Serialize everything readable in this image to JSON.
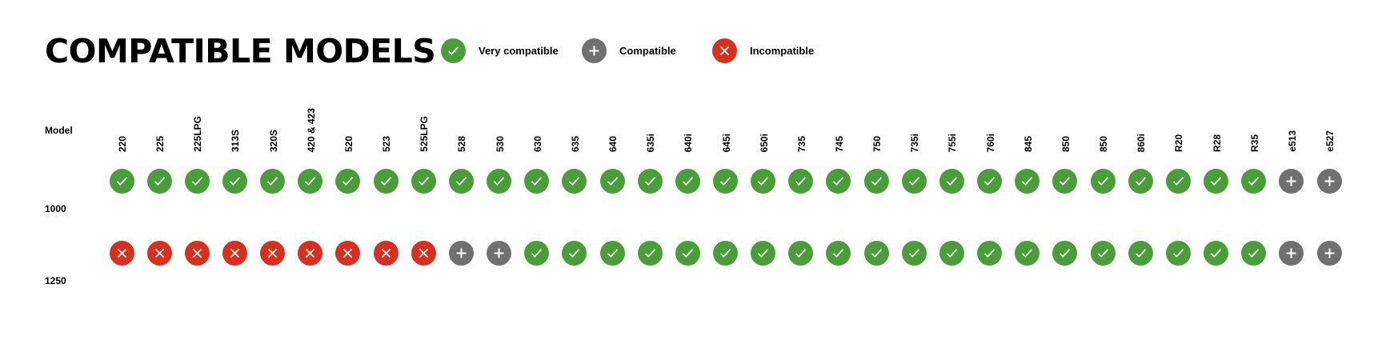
{
  "title": "COMPATIBLE MODELS",
  "legend": [
    {
      "status": "very",
      "label": "Very compatible"
    },
    {
      "status": "compat",
      "label": "Compatible"
    },
    {
      "status": "incompat",
      "label": "Incompatible"
    }
  ],
  "colors": {
    "very": "#4a9e3a",
    "compat": "#707070",
    "incompat": "#d8301f"
  },
  "icons": {
    "very": "check-icon",
    "compat": "plus-icon",
    "incompat": "x-icon"
  },
  "header_label": "Model",
  "columns": [
    "220",
    "225",
    "225LPG",
    "313S",
    "320S",
    "420 & 423",
    "520",
    "523",
    "525LPG",
    "528",
    "530",
    "630",
    "635",
    "640",
    "635i",
    "640i",
    "645i",
    "650i",
    "735",
    "745",
    "750",
    "735i",
    "755i",
    "760i",
    "845",
    "850",
    "850",
    "860i",
    "R20",
    "R28",
    "R35",
    "e513",
    "e527"
  ],
  "rows": [
    {
      "label": "1000",
      "values": [
        "very",
        "very",
        "very",
        "very",
        "very",
        "very",
        "very",
        "very",
        "very",
        "very",
        "very",
        "very",
        "very",
        "very",
        "very",
        "very",
        "very",
        "very",
        "very",
        "very",
        "very",
        "very",
        "very",
        "very",
        "very",
        "very",
        "very",
        "very",
        "very",
        "very",
        "very",
        "compat",
        "compat"
      ]
    },
    {
      "label": "1250",
      "values": [
        "incompat",
        "incompat",
        "incompat",
        "incompat",
        "incompat",
        "incompat",
        "incompat",
        "incompat",
        "incompat",
        "compat",
        "compat",
        "very",
        "very",
        "very",
        "very",
        "very",
        "very",
        "very",
        "very",
        "very",
        "very",
        "very",
        "very",
        "very",
        "very",
        "very",
        "very",
        "very",
        "very",
        "very",
        "very",
        "compat",
        "compat"
      ]
    }
  ]
}
